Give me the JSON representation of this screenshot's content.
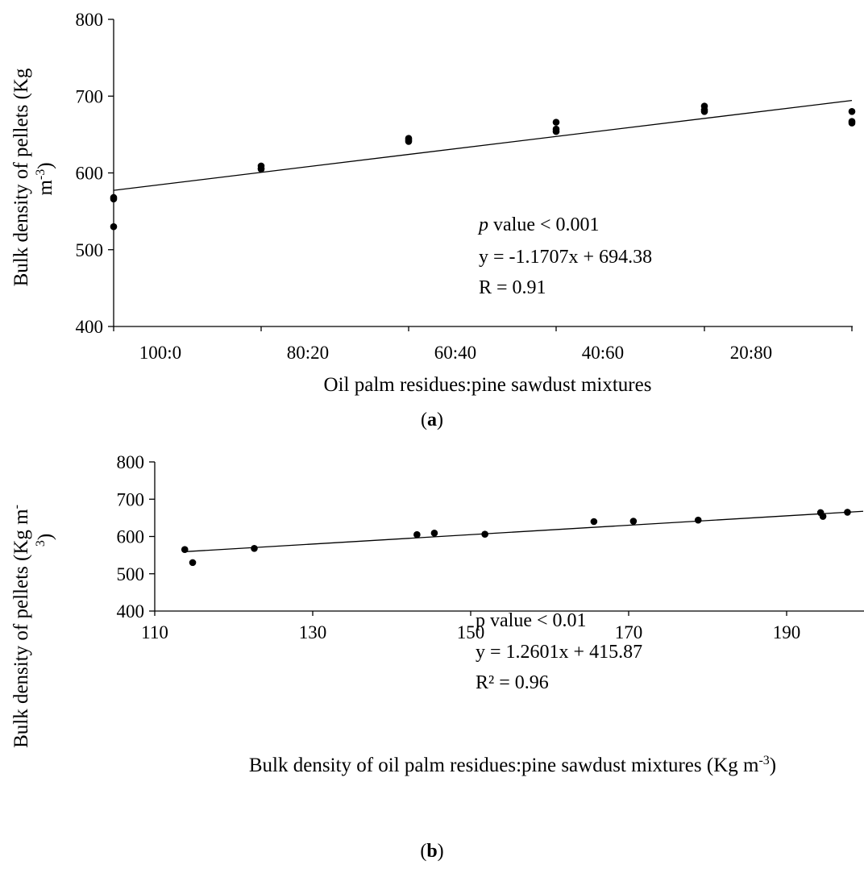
{
  "chart_data": [
    {
      "type": "scatter",
      "panel_label": "a",
      "xlabel": "Oil palm residues:pine sawdust mixtures",
      "ylabel": "Bulk density of pellets (Kg m-3)",
      "ylabel_lines": [
        "Bulk density of pellets (Kg",
        "m"
      ],
      "ylabel_sup": "-3",
      "ylabel_tail": ")",
      "ylim": [
        400,
        800
      ],
      "yticks": [
        400,
        500,
        600,
        700,
        800
      ],
      "categories": [
        "100:0",
        "80:20",
        "60:40",
        "40:60",
        "20:80",
        "0:100"
      ],
      "points": [
        {
          "x": 0,
          "y": 568
        },
        {
          "x": 0,
          "y": 566
        },
        {
          "x": 0,
          "y": 530
        },
        {
          "x": 1,
          "y": 609
        },
        {
          "x": 1,
          "y": 606
        },
        {
          "x": 1,
          "y": 605
        },
        {
          "x": 2,
          "y": 645
        },
        {
          "x": 2,
          "y": 643
        },
        {
          "x": 2,
          "y": 641
        },
        {
          "x": 3,
          "y": 666
        },
        {
          "x": 3,
          "y": 657
        },
        {
          "x": 3,
          "y": 654
        },
        {
          "x": 4,
          "y": 687
        },
        {
          "x": 4,
          "y": 682
        },
        {
          "x": 4,
          "y": 680
        },
        {
          "x": 5,
          "y": 680
        },
        {
          "x": 5,
          "y": 667
        },
        {
          "x": 5,
          "y": 665
        }
      ],
      "trendline": {
        "x": [
          0,
          5
        ],
        "y": [
          577.3,
          694.38
        ]
      },
      "annotations": {
        "p_italic": "p",
        "p_rest": " value < 0.001",
        "equation": "y = -1.1707x + 694.38",
        "r": "R = 0.91"
      },
      "grid": false
    },
    {
      "type": "scatter",
      "panel_label": "b",
      "xlabel": "Bulk density of oil palm residues:pine sawdust mixtures (Kg m-3)",
      "xlabel_main": "Bulk density of oil palm residues:pine sawdust mixtures (Kg m",
      "xlabel_sup": "-3",
      "xlabel_tail": ")",
      "ylabel": "Bulk density of pellets (Kg m-3)",
      "ylabel_lines": [
        "Bulk density of pellets (Kg m",
        "3)"
      ],
      "ylabel_sup1": "-",
      "ylim": [
        400,
        800
      ],
      "yticks": [
        400,
        500,
        600,
        700,
        800
      ],
      "xlim": [
        110,
        200
      ],
      "xticks": [
        110,
        130,
        150,
        170,
        190
      ],
      "points": [
        {
          "x": 113.8,
          "y": 565
        },
        {
          "x": 114.8,
          "y": 530
        },
        {
          "x": 122.6,
          "y": 568
        },
        {
          "x": 143.2,
          "y": 605
        },
        {
          "x": 145.4,
          "y": 609
        },
        {
          "x": 151.8,
          "y": 606
        },
        {
          "x": 165.6,
          "y": 640
        },
        {
          "x": 170.6,
          "y": 641
        },
        {
          "x": 178.8,
          "y": 644
        },
        {
          "x": 194.3,
          "y": 664
        },
        {
          "x": 194.6,
          "y": 654
        },
        {
          "x": 197.7,
          "y": 665
        }
      ],
      "trendline": {
        "x": [
          113.8,
          199.8
        ],
        "y": [
          559.3,
          667.6
        ]
      },
      "annotations": {
        "p": "p value < 0.01",
        "equation": "y = 1.2601x + 415.87",
        "r2": "R² = 0.96"
      },
      "grid": false
    }
  ]
}
